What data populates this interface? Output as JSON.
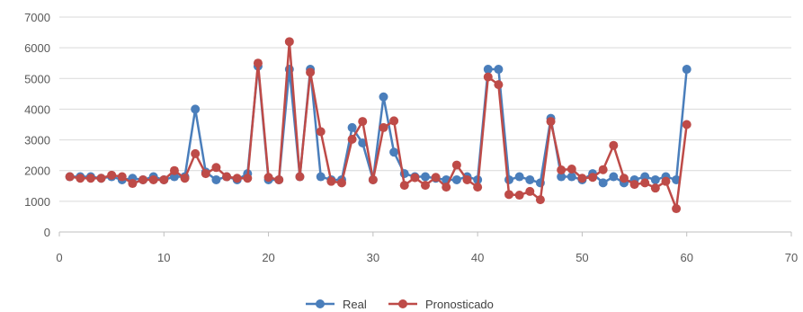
{
  "chart_data": {
    "type": "line",
    "title": "",
    "xlabel": "",
    "ylabel": "",
    "xlim": [
      0,
      70
    ],
    "ylim": [
      0,
      7000
    ],
    "x_ticks": [
      0,
      10,
      20,
      30,
      40,
      50,
      60,
      70
    ],
    "y_ticks": [
      0,
      1000,
      2000,
      3000,
      4000,
      5000,
      6000,
      7000
    ],
    "grid": "horizontal",
    "legend_position": "bottom",
    "x": [
      1,
      2,
      3,
      4,
      5,
      6,
      7,
      8,
      9,
      10,
      11,
      12,
      13,
      14,
      15,
      16,
      17,
      18,
      19,
      20,
      21,
      22,
      23,
      24,
      25,
      26,
      27,
      28,
      29,
      30,
      31,
      32,
      33,
      34,
      35,
      36,
      37,
      38,
      39,
      40,
      41,
      42,
      43,
      44,
      45,
      46,
      47,
      48,
      49,
      50,
      51,
      52,
      53,
      54,
      55,
      56,
      57,
      58,
      59,
      60
    ],
    "series": [
      {
        "name": "Real",
        "color": "#4a7ebb",
        "values": [
          1800,
          1800,
          1800,
          1750,
          1800,
          1700,
          1750,
          1700,
          1800,
          1700,
          1800,
          1800,
          4000,
          1950,
          1700,
          1800,
          1700,
          1900,
          5400,
          1700,
          1700,
          5300,
          1800,
          5300,
          1800,
          1700,
          1700,
          3400,
          2900,
          1700,
          4400,
          2600,
          1900,
          1800,
          1800,
          1750,
          1700,
          1700,
          1800,
          1700,
          5300,
          5300,
          1700,
          1800,
          1700,
          1600,
          3700,
          1800,
          1800,
          1700,
          1900,
          1600,
          1800,
          1600,
          1700,
          1800,
          1700,
          1800,
          1700,
          5300
        ]
      },
      {
        "name": "Pronosticado",
        "color": "#be4b48",
        "values": [
          1800,
          1750,
          1750,
          1750,
          1850,
          1800,
          1580,
          1700,
          1700,
          1700,
          2000,
          1750,
          2550,
          1900,
          2100,
          1800,
          1750,
          1750,
          5500,
          1780,
          1700,
          6200,
          1800,
          5200,
          3270,
          1650,
          1600,
          3020,
          3600,
          1700,
          3400,
          3620,
          1520,
          1770,
          1520,
          1780,
          1460,
          2180,
          1700,
          1460,
          5050,
          4800,
          1220,
          1200,
          1320,
          1050,
          3600,
          2020,
          2050,
          1750,
          1780,
          2030,
          2820,
          1750,
          1550,
          1600,
          1430,
          1650,
          760,
          3500
        ]
      }
    ]
  }
}
